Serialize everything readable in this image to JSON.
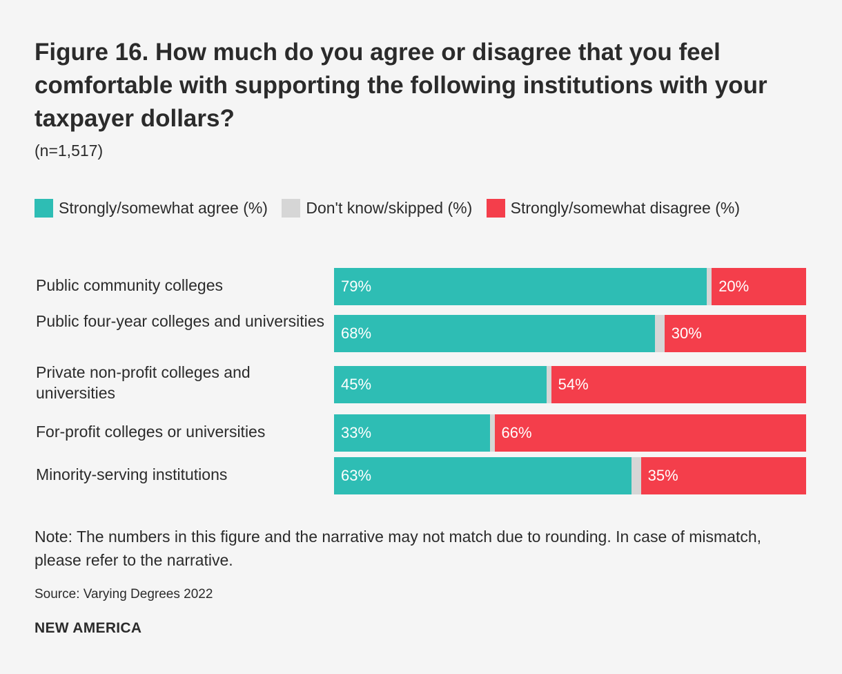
{
  "chart_data": {
    "type": "bar",
    "orientation": "horizontal",
    "stacked": true,
    "title": "Figure 16. How much do you agree or disagree that you feel comfortable with supporting the following institutions with your taxpayer dollars?",
    "subtitle": "(n=1,517)",
    "categories": [
      "Public community colleges",
      "Public four-year colleges and universities",
      "Private non-profit colleges and universities",
      "For-profit colleges or universities",
      "Minority-serving institutions"
    ],
    "series": [
      {
        "name": "Strongly/somewhat agree (%)",
        "color": "#2ebdb4",
        "values": [
          79,
          68,
          45,
          33,
          63
        ]
      },
      {
        "name": "Don't know/skipped (%)",
        "color": "#d6d6d6",
        "values": [
          1,
          2,
          1,
          1,
          2
        ]
      },
      {
        "name": "Strongly/somewhat disagree (%)",
        "color": "#f43e4b",
        "values": [
          20,
          30,
          54,
          66,
          35
        ]
      }
    ],
    "data_labels": {
      "agree": [
        "79%",
        "68%",
        "45%",
        "33%",
        "63%"
      ],
      "disagree": [
        "20%",
        "30%",
        "54%",
        "66%",
        "35%"
      ]
    },
    "xlim": [
      0,
      100
    ],
    "legend": {
      "agree": "Strongly/somewhat agree (%)",
      "dontknow": "Don't know/skipped (%)",
      "disagree": "Strongly/somewhat disagree (%)"
    }
  },
  "footer": {
    "note": "Note: The numbers in this figure and the narrative may not match due to rounding. In case of mismatch, please refer to the narrative.",
    "source": "Source: Varying Degrees 2022",
    "brand": "NEW AMERICA"
  }
}
